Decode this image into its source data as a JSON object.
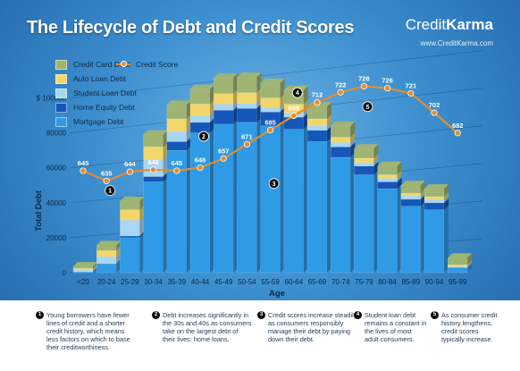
{
  "header": {
    "title": "The Lifecycle of Debt and Credit Scores",
    "brand_a": "Credit",
    "brand_b": "Karma",
    "brand_url": "www.CreditKarma.com"
  },
  "legend": {
    "items": [
      {
        "label": "Credit Card Debt",
        "color": "#9fb472"
      },
      {
        "label": "Auto Loan Debt",
        "color": "#f2d66a"
      },
      {
        "label": "Student Loan Debt",
        "color": "#a9d6f0"
      },
      {
        "label": "Home Equity Debt",
        "color": "#1557b8"
      },
      {
        "label": "Mortgage Debt",
        "color": "#2f9ae6"
      }
    ],
    "score_label": "Credit Score",
    "score_color": "#e08e33"
  },
  "chart_data": {
    "type": "bar",
    "stacked": true,
    "xlabel": "Age",
    "ylabel": "Total Debt",
    "ylim": [
      0,
      110000
    ],
    "yticks": [
      {
        "value": 0,
        "label": "0"
      },
      {
        "value": 20000,
        "label": "20000"
      },
      {
        "value": 40000,
        "label": "40000"
      },
      {
        "value": 60000,
        "label": "60000"
      },
      {
        "value": 80000,
        "label": "80000"
      },
      {
        "value": 100000,
        "label": "$ 100000"
      }
    ],
    "categories": [
      "<20",
      "20-24",
      "25-29",
      "30-34",
      "35-39",
      "40-44",
      "45-49",
      "50-54",
      "55-59",
      "60-64",
      "65-69",
      "70-74",
      "75-79",
      "80-84",
      "85-89",
      "90-94",
      "95-99"
    ],
    "series": [
      {
        "name": "Mortgage Debt",
        "color": "#2f9ae6",
        "values": [
          500,
          5000,
          20000,
          52000,
          70000,
          80000,
          85000,
          86000,
          84000,
          82000,
          75000,
          66000,
          56000,
          48000,
          38000,
          36000,
          3000
        ]
      },
      {
        "name": "Home Equity Debt",
        "color": "#1557b8",
        "values": [
          0,
          200,
          1000,
          3000,
          5000,
          6000,
          8000,
          8000,
          8000,
          7000,
          6500,
          6000,
          5000,
          4000,
          4000,
          4000,
          0
        ]
      },
      {
        "name": "Student Loan Debt",
        "color": "#a9d6f0",
        "values": [
          1000,
          4000,
          9000,
          10000,
          6000,
          4000,
          3500,
          3000,
          2500,
          2500,
          2500,
          2500,
          2000,
          2000,
          2000,
          2000,
          500
        ]
      },
      {
        "name": "Auto Loan Debt",
        "color": "#f2d66a",
        "values": [
          1000,
          3500,
          6000,
          7000,
          7000,
          6500,
          6000,
          6000,
          5500,
          5000,
          4000,
          3000,
          2500,
          2000,
          1500,
          1500,
          1000
        ]
      },
      {
        "name": "Credit Card Debt",
        "color": "#9fb472",
        "values": [
          1000,
          3000,
          5000,
          7000,
          8000,
          8500,
          9000,
          9000,
          8500,
          8000,
          7000,
          6500,
          5500,
          5000,
          4500,
          4500,
          4000
        ]
      }
    ],
    "credit_score": {
      "name": "Credit Score",
      "values": [
        645,
        635,
        644,
        646,
        645,
        648,
        657,
        671,
        685,
        699,
        712,
        722,
        728,
        726,
        721,
        702,
        682
      ],
      "range": [
        580,
        760
      ]
    },
    "markers": [
      {
        "num": "1",
        "category_index": 1,
        "value": 47000
      },
      {
        "num": "2",
        "category_index": 5,
        "value": 78000
      },
      {
        "num": "3",
        "category_index": 8,
        "value": 51000
      },
      {
        "num": "4",
        "category_index": 9,
        "value": 103000
      },
      {
        "num": "5",
        "category_index": 12,
        "value": 95000
      }
    ]
  },
  "notes": [
    {
      "num": "1",
      "text": "Young borrowers have fewer lines of credit and a shorter credit history, which means less factors on which to base their creditworthiness."
    },
    {
      "num": "2",
      "text": "Debt increases significantly in the 30s and 40s as consumers take on the largest debt of their lives: home loans."
    },
    {
      "num": "3",
      "text": "Credit scores increase steadily as consumers responsibly manage their debt by paying down their debt."
    },
    {
      "num": "4",
      "text": "Student loan debt remains a constant in the lives of most adult consumers."
    },
    {
      "num": "5",
      "text": "As consumer credit history lengthens, credit scores typically increase."
    }
  ]
}
